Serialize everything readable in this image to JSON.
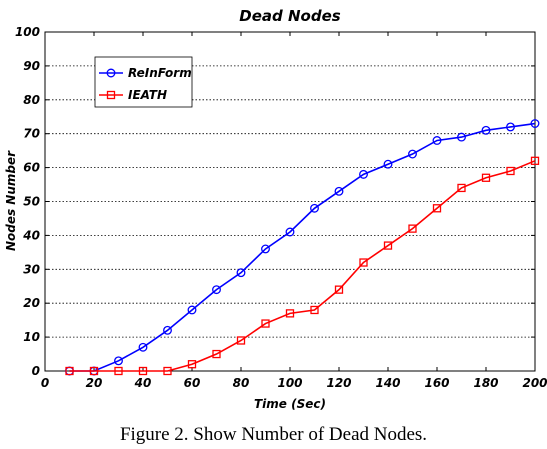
{
  "caption": "Figure 2.  Show Number of  Dead Nodes.",
  "chart_data": {
    "type": "line",
    "title": "Dead Nodes",
    "xlabel": "Time (Sec)",
    "ylabel": "Nodes  Number",
    "xlim": [
      0,
      200
    ],
    "ylim": [
      0,
      100
    ],
    "xticks": [
      0,
      20,
      40,
      60,
      80,
      100,
      120,
      140,
      160,
      180,
      200
    ],
    "yticks": [
      0,
      10,
      20,
      30,
      40,
      50,
      60,
      70,
      80,
      90,
      100
    ],
    "grid": "horizontal dotted",
    "legend_position": "top-left",
    "x": [
      10,
      20,
      30,
      40,
      50,
      60,
      70,
      80,
      90,
      100,
      110,
      120,
      130,
      140,
      150,
      160,
      170,
      180,
      190,
      200
    ],
    "series": [
      {
        "name": "ReInForm",
        "color": "#0000ff",
        "marker": "circle",
        "values": [
          0,
          0,
          3,
          7,
          12,
          18,
          24,
          29,
          36,
          41,
          48,
          53,
          58,
          61,
          64,
          68,
          69,
          71,
          72,
          73
        ]
      },
      {
        "name": "IEATH",
        "color": "#ff0000",
        "marker": "square",
        "values": [
          0,
          0,
          0,
          0,
          0,
          2,
          5,
          9,
          14,
          17,
          18,
          24,
          32,
          37,
          42,
          48,
          54,
          57,
          59,
          62
        ]
      }
    ]
  }
}
